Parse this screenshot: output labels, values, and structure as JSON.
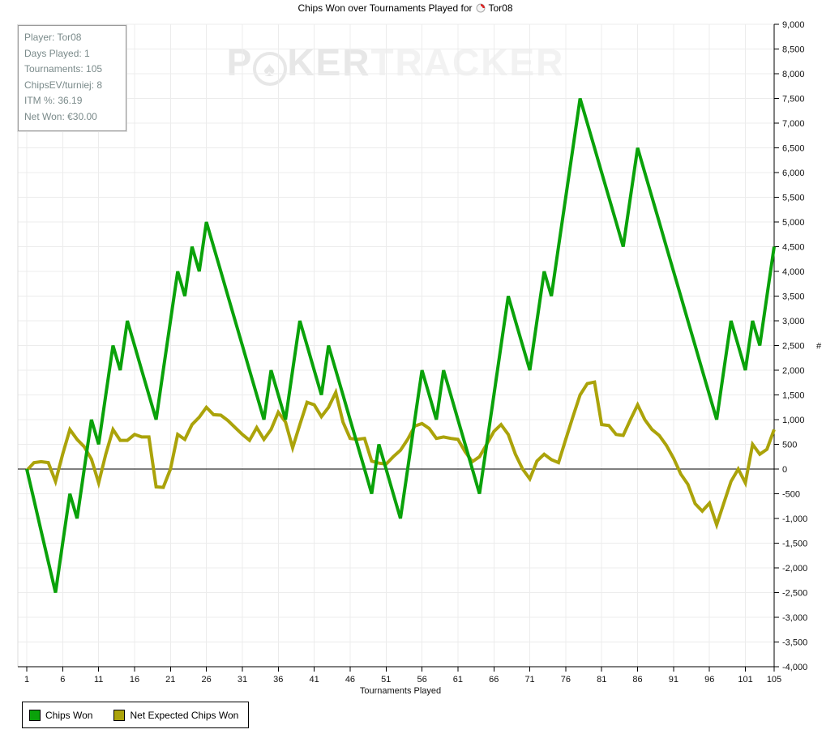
{
  "title": {
    "text": "Chips Won over Tournaments Played for",
    "player": "Tor08"
  },
  "stats_box": {
    "lines": [
      "Player: Tor08",
      "Days Played: 1",
      "Tournaments: 105",
      "ChipsEV/turniej: 8",
      "ITM %: 36.19",
      "Net Won: €30.00"
    ]
  },
  "watermark": {
    "part1": "P",
    "spade": "♠",
    "part2": "KER",
    "part3": "TRACKER"
  },
  "legend": [
    {
      "label": "Chips Won",
      "color": "#0aa20a"
    },
    {
      "label": "Net Expected Chips Won",
      "color": "#aba30a"
    }
  ],
  "chart_data": {
    "type": "line",
    "title": "Chips Won over Tournaments Played for Tor08",
    "xlabel": "Tournaments Played",
    "ylabel": "#",
    "xlim": [
      1,
      105
    ],
    "ylim": [
      -4000,
      9000
    ],
    "y_tick_step": 500,
    "x_ticks": [
      1,
      6,
      11,
      16,
      21,
      26,
      31,
      36,
      41,
      46,
      51,
      56,
      61,
      66,
      71,
      76,
      81,
      86,
      91,
      96,
      101,
      105
    ],
    "grid": true,
    "legend_position": "bottom-left",
    "x": "tournament number 1..105",
    "series": [
      {
        "name": "Chips Won",
        "color": "#0aa20a",
        "values": [
          0,
          -625,
          -1250,
          -1875,
          -2500,
          -1500,
          -500,
          -1000,
          0,
          1000,
          500,
          1500,
          2500,
          2000,
          3000,
          2500,
          2000,
          1500,
          1000,
          2000,
          3000,
          4000,
          3500,
          4500,
          4000,
          5000,
          4500,
          4000,
          3500,
          3000,
          2500,
          2000,
          1500,
          1000,
          2000,
          1500,
          1000,
          2000,
          3000,
          2500,
          2000,
          1500,
          2500,
          2000,
          1500,
          1000,
          500,
          0,
          -500,
          500,
          0,
          -500,
          -1000,
          0,
          1000,
          2000,
          1500,
          1000,
          2000,
          1500,
          1000,
          500,
          0,
          -500,
          500,
          1500,
          2500,
          3500,
          3000,
          2500,
          2000,
          3000,
          4000,
          3500,
          4500,
          5500,
          6500,
          7500,
          7000,
          6500,
          6000,
          5500,
          5000,
          4500,
          5500,
          6500,
          6000,
          5500,
          5000,
          4500,
          4000,
          3500,
          3000,
          2500,
          2000,
          1500,
          1000,
          2000,
          3000,
          2500,
          2000,
          3000,
          2500,
          3500,
          4500
        ]
      },
      {
        "name": "Net Expected Chips Won",
        "color": "#aba30a",
        "values": [
          -30,
          130,
          150,
          130,
          -250,
          300,
          800,
          600,
          450,
          200,
          -280,
          300,
          800,
          580,
          580,
          700,
          650,
          650,
          -360,
          -370,
          0,
          700,
          600,
          900,
          1050,
          1250,
          1100,
          1090,
          980,
          840,
          700,
          580,
          840,
          600,
          800,
          1150,
          950,
          430,
          900,
          1350,
          1300,
          1060,
          1250,
          1550,
          950,
          620,
          600,
          620,
          160,
          120,
          100,
          250,
          380,
          600,
          870,
          920,
          820,
          620,
          650,
          620,
          600,
          350,
          150,
          250,
          500,
          760,
          900,
          700,
          300,
          0,
          -200,
          160,
          300,
          190,
          130,
          600,
          1060,
          1500,
          1730,
          1760,
          900,
          880,
          700,
          680,
          1000,
          1300,
          1000,
          800,
          680,
          480,
          220,
          -100,
          -310,
          -700,
          -850,
          -690,
          -1130,
          -690,
          -250,
          0,
          -280,
          500,
          300,
          400,
          800
        ]
      }
    ]
  }
}
